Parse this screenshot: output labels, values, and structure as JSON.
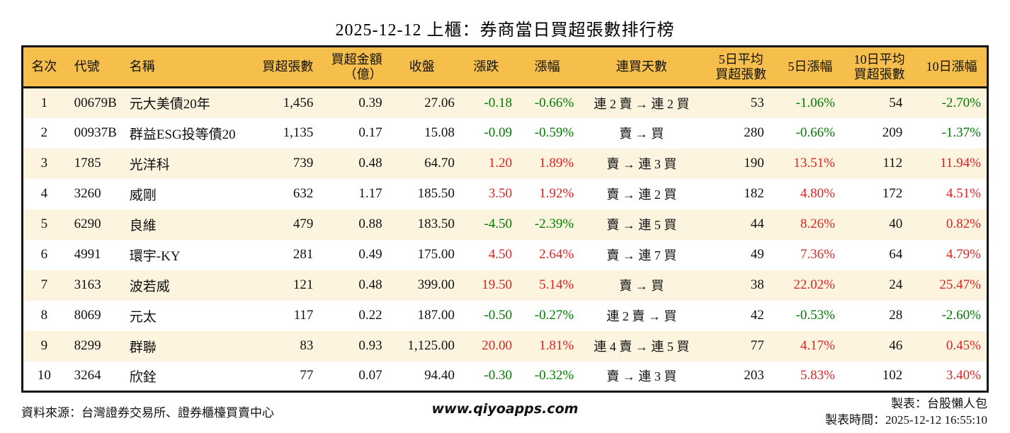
{
  "title": "2025-12-12 上櫃：券商當日買超張數排行榜",
  "colors": {
    "header_bg": "#f6be4b",
    "stripe_bg": "#fcf4df",
    "up": "#dd2222",
    "down": "#007b00",
    "border": "#141414"
  },
  "table": {
    "column_keys": [
      "rank",
      "code",
      "name",
      "net_buy",
      "amount",
      "close",
      "change",
      "change_pct",
      "streak",
      "avg5",
      "pct5",
      "avg10",
      "pct10"
    ],
    "headers": {
      "rank": "名次",
      "code": "代號",
      "name": "名稱",
      "net_buy": "買超張數",
      "amount_line1": "買超金額",
      "amount_line2": "（億）",
      "close": "收盤",
      "change": "漲跌",
      "change_pct": "漲幅",
      "streak": "連買天數",
      "avg5_line1": "5日平均",
      "avg5_line2": "買超張數",
      "pct5": "5日漲幅",
      "avg10_line1": "10日平均",
      "avg10_line2": "買超張數",
      "pct10": "10日漲幅"
    },
    "rows": [
      {
        "rank": "1",
        "code": "00679B",
        "name": "元大美債20年",
        "net_buy": "1,456",
        "amount": "0.39",
        "close": "27.06",
        "change": {
          "v": "-0.18",
          "c": "down"
        },
        "change_pct": {
          "v": "-0.66%",
          "c": "down"
        },
        "streak": "連 2 賣 → 連 2 買",
        "avg5": "53",
        "pct5": {
          "v": "-1.06%",
          "c": "down"
        },
        "avg10": "54",
        "pct10": {
          "v": "-2.70%",
          "c": "down"
        }
      },
      {
        "rank": "2",
        "code": "00937B",
        "name": "群益ESG投等債20",
        "net_buy": "1,135",
        "amount": "0.17",
        "close": "15.08",
        "change": {
          "v": "-0.09",
          "c": "down"
        },
        "change_pct": {
          "v": "-0.59%",
          "c": "down"
        },
        "streak": "賣 → 買",
        "avg5": "280",
        "pct5": {
          "v": "-0.66%",
          "c": "down"
        },
        "avg10": "209",
        "pct10": {
          "v": "-1.37%",
          "c": "down"
        }
      },
      {
        "rank": "3",
        "code": "1785",
        "name": "光洋科",
        "net_buy": "739",
        "amount": "0.48",
        "close": "64.70",
        "change": {
          "v": "1.20",
          "c": "up"
        },
        "change_pct": {
          "v": "1.89%",
          "c": "up"
        },
        "streak": "賣 → 連 3 買",
        "avg5": "190",
        "pct5": {
          "v": "13.51%",
          "c": "up"
        },
        "avg10": "112",
        "pct10": {
          "v": "11.94%",
          "c": "up"
        }
      },
      {
        "rank": "4",
        "code": "3260",
        "name": "威剛",
        "net_buy": "632",
        "amount": "1.17",
        "close": "185.50",
        "change": {
          "v": "3.50",
          "c": "up"
        },
        "change_pct": {
          "v": "1.92%",
          "c": "up"
        },
        "streak": "賣 → 連 2 買",
        "avg5": "182",
        "pct5": {
          "v": "4.80%",
          "c": "up"
        },
        "avg10": "172",
        "pct10": {
          "v": "4.51%",
          "c": "up"
        }
      },
      {
        "rank": "5",
        "code": "6290",
        "name": "良維",
        "net_buy": "479",
        "amount": "0.88",
        "close": "183.50",
        "change": {
          "v": "-4.50",
          "c": "down"
        },
        "change_pct": {
          "v": "-2.39%",
          "c": "down"
        },
        "streak": "賣 → 連 5 買",
        "avg5": "44",
        "pct5": {
          "v": "8.26%",
          "c": "up"
        },
        "avg10": "40",
        "pct10": {
          "v": "0.82%",
          "c": "up"
        }
      },
      {
        "rank": "6",
        "code": "4991",
        "name": "環宇-KY",
        "net_buy": "281",
        "amount": "0.49",
        "close": "175.00",
        "change": {
          "v": "4.50",
          "c": "up"
        },
        "change_pct": {
          "v": "2.64%",
          "c": "up"
        },
        "streak": "賣 → 連 7 買",
        "avg5": "49",
        "pct5": {
          "v": "7.36%",
          "c": "up"
        },
        "avg10": "64",
        "pct10": {
          "v": "4.79%",
          "c": "up"
        }
      },
      {
        "rank": "7",
        "code": "3163",
        "name": "波若威",
        "net_buy": "121",
        "amount": "0.48",
        "close": "399.00",
        "change": {
          "v": "19.50",
          "c": "up"
        },
        "change_pct": {
          "v": "5.14%",
          "c": "up"
        },
        "streak": "賣 → 買",
        "avg5": "38",
        "pct5": {
          "v": "22.02%",
          "c": "up"
        },
        "avg10": "24",
        "pct10": {
          "v": "25.47%",
          "c": "up"
        }
      },
      {
        "rank": "8",
        "code": "8069",
        "name": "元太",
        "net_buy": "117",
        "amount": "0.22",
        "close": "187.00",
        "change": {
          "v": "-0.50",
          "c": "down"
        },
        "change_pct": {
          "v": "-0.27%",
          "c": "down"
        },
        "streak": "連 2 賣 → 買",
        "avg5": "42",
        "pct5": {
          "v": "-0.53%",
          "c": "down"
        },
        "avg10": "28",
        "pct10": {
          "v": "-2.60%",
          "c": "down"
        }
      },
      {
        "rank": "9",
        "code": "8299",
        "name": "群聯",
        "net_buy": "83",
        "amount": "0.93",
        "close": "1,125.00",
        "change": {
          "v": "20.00",
          "c": "up"
        },
        "change_pct": {
          "v": "1.81%",
          "c": "up"
        },
        "streak": "連 4 賣 → 連 5 買",
        "avg5": "77",
        "pct5": {
          "v": "4.17%",
          "c": "up"
        },
        "avg10": "46",
        "pct10": {
          "v": "0.45%",
          "c": "up"
        }
      },
      {
        "rank": "10",
        "code": "3264",
        "name": "欣銓",
        "net_buy": "77",
        "amount": "0.07",
        "close": "94.40",
        "change": {
          "v": "-0.30",
          "c": "down"
        },
        "change_pct": {
          "v": "-0.32%",
          "c": "down"
        },
        "streak": "賣 → 連 3 買",
        "avg5": "203",
        "pct5": {
          "v": "5.83%",
          "c": "up"
        },
        "avg10": "102",
        "pct10": {
          "v": "3.40%",
          "c": "up"
        }
      }
    ]
  },
  "footer": {
    "source": "資料來源：台灣證券交易所、證券櫃檯買賣中心",
    "website": "www.qiyoapps.com",
    "maker": "製表：台股懶人包",
    "made_time": "製表時間：2025-12-12 16:55:10"
  }
}
